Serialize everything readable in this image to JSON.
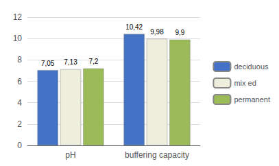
{
  "chart_data": {
    "type": "bar",
    "categories": [
      "pH",
      "buffering capacity"
    ],
    "series": [
      {
        "name": "deciduous",
        "color": "#4472C4",
        "values": [
          7.05,
          10.42
        ],
        "value_labels": [
          "7,05",
          "10,42"
        ]
      },
      {
        "name": "mix ed",
        "color": "#EEEEDD",
        "values": [
          7.13,
          9.98
        ],
        "value_labels": [
          "7,13",
          "9,98"
        ]
      },
      {
        "name": "permanent",
        "color": "#9BBB59",
        "values": [
          7.2,
          9.9
        ],
        "value_labels": [
          "7,2",
          "9,9"
        ]
      }
    ],
    "ylim": [
      0,
      12
    ],
    "yticks": [
      0,
      2,
      4,
      6,
      8,
      10,
      12
    ],
    "grid": true,
    "legend": "right",
    "data_labels": true
  }
}
